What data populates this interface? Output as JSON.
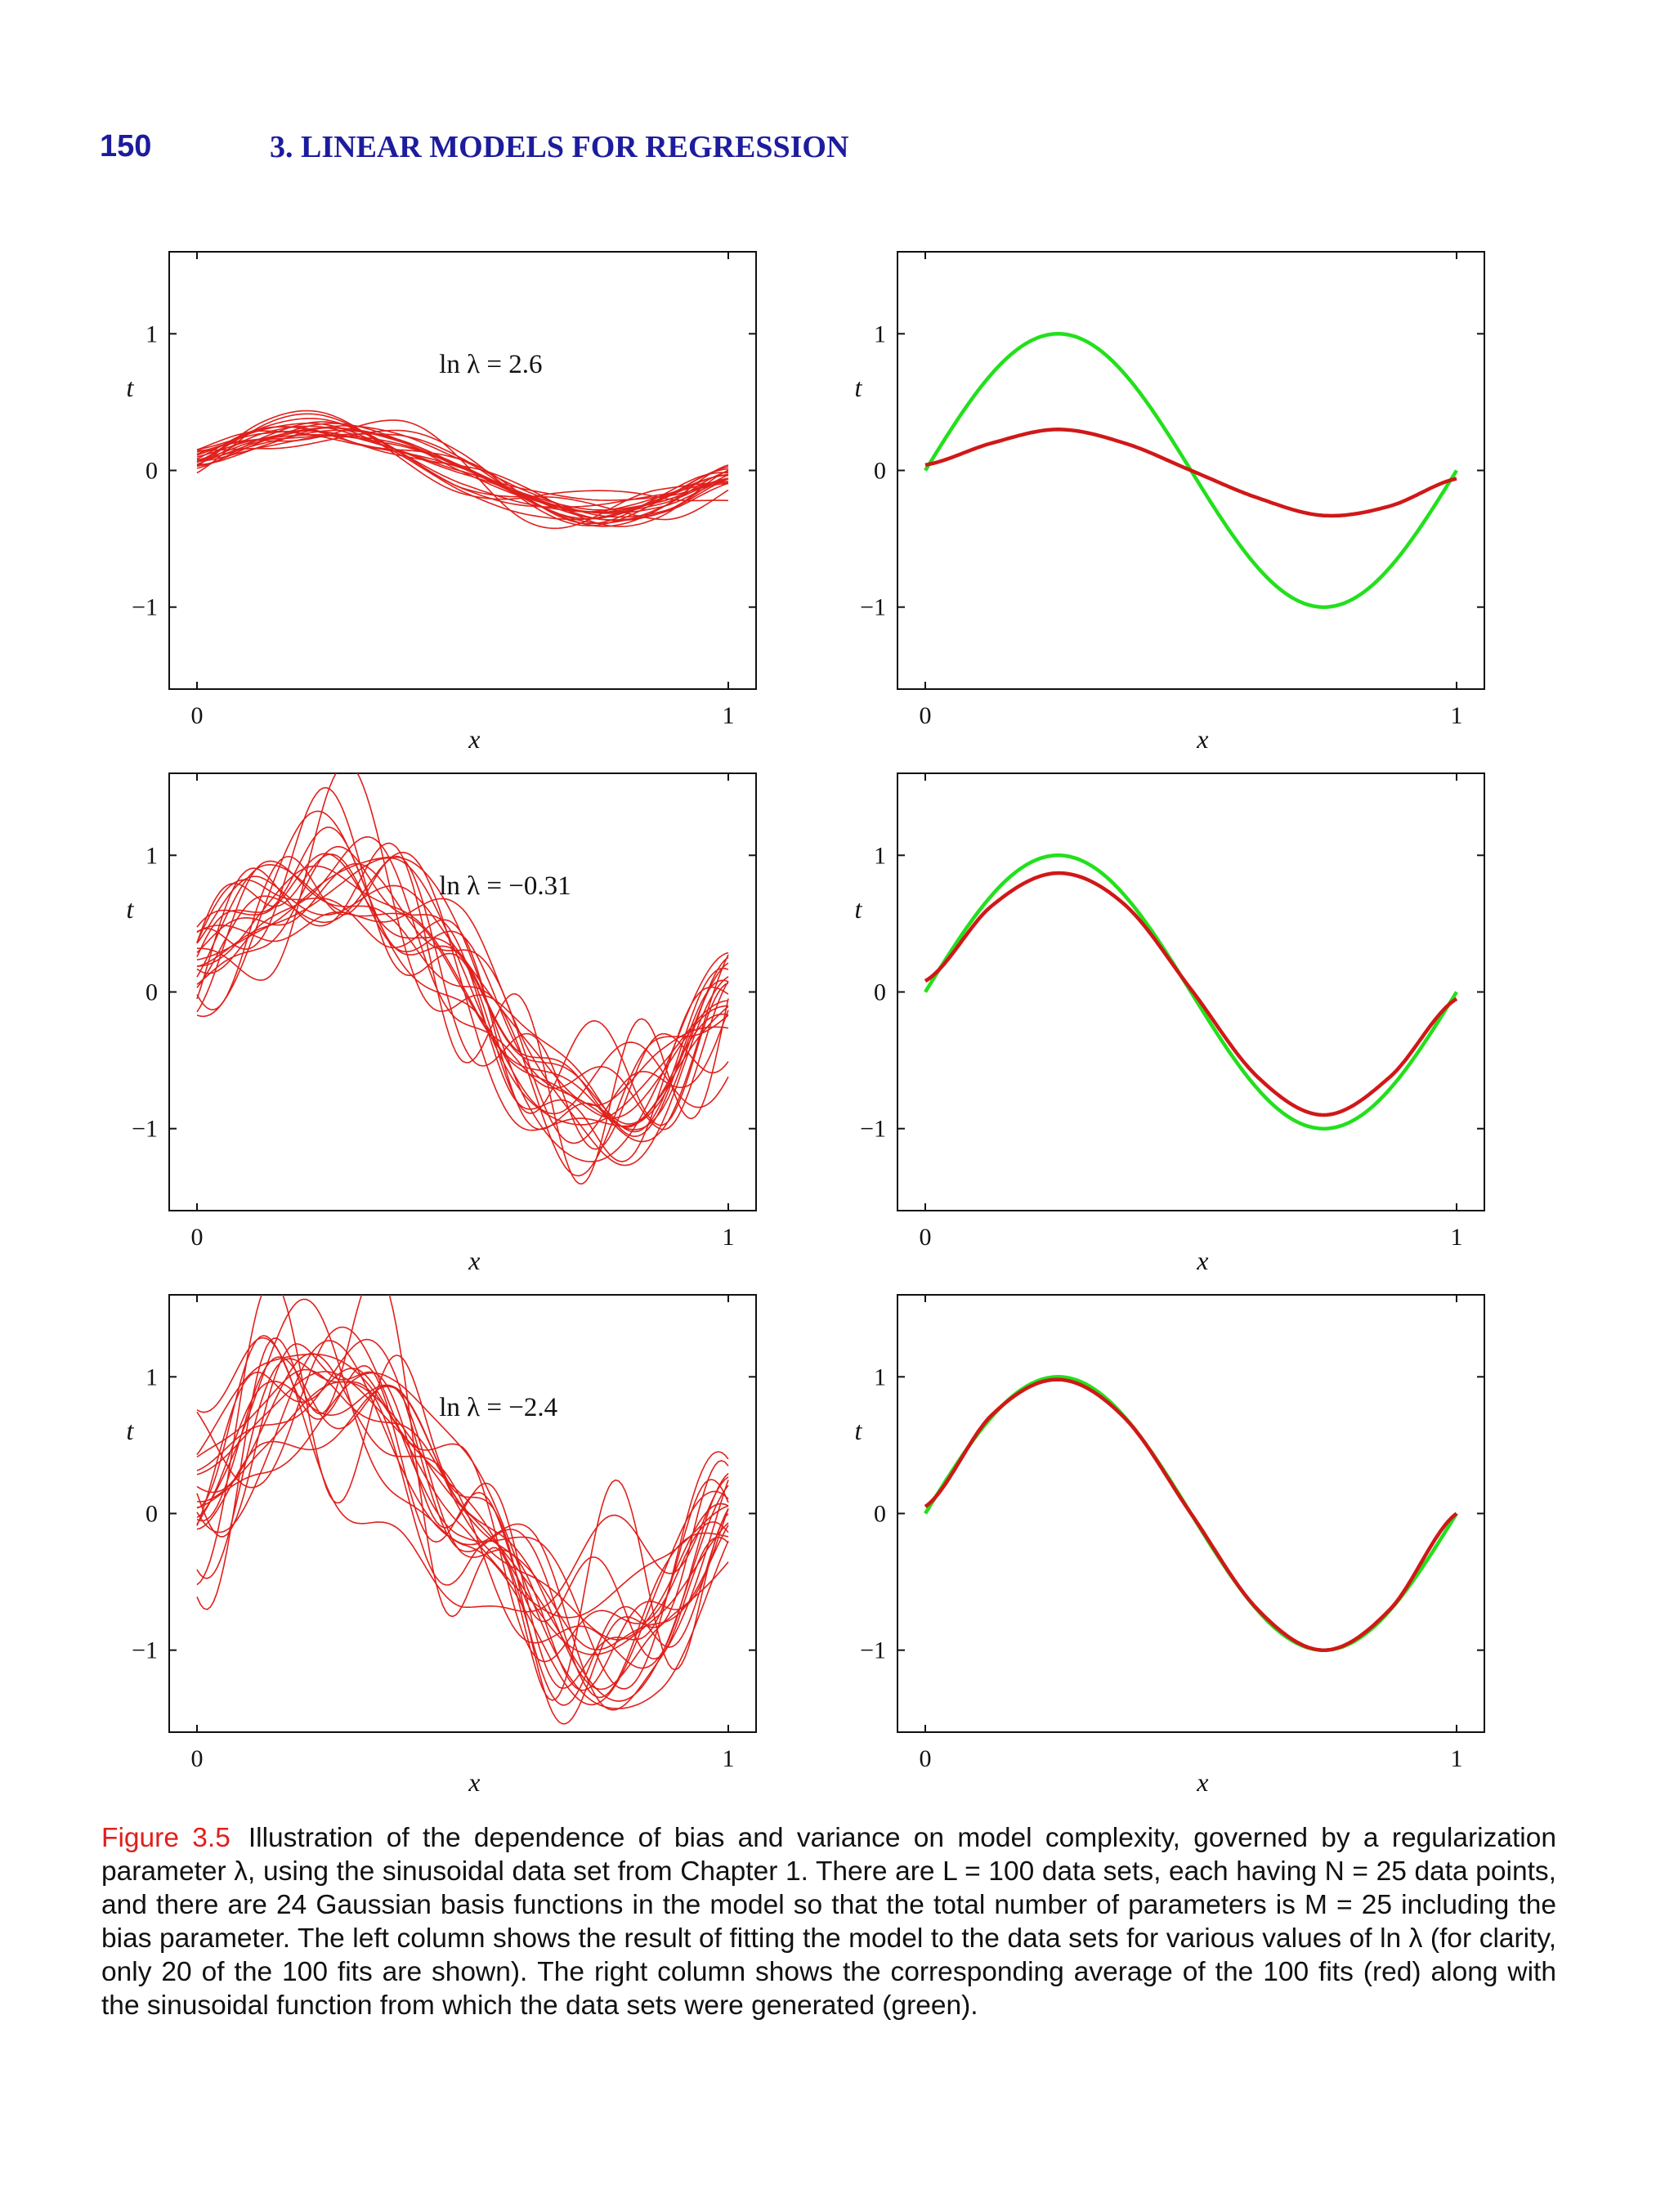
{
  "header": {
    "page_number": "150",
    "chapter_title": "3. LINEAR MODELS FOR REGRESSION"
  },
  "colors": {
    "header": "#1c1c9e",
    "fit_red": "#e0201c",
    "mean_red": "#d01818",
    "true_green": "#22e01c",
    "caption_label": "#e0201c"
  },
  "chart_data": [
    {
      "type": "line",
      "panel": "left-row-1",
      "annotation": "ln λ = 2.6",
      "xlabel": "x",
      "ylabel": "t",
      "xlim": [
        0,
        1
      ],
      "ylim": [
        -1.6,
        1.6
      ],
      "xticks": [
        "0",
        "1"
      ],
      "yticks": [
        "1",
        "0",
        "−1"
      ],
      "series_count_shown": 20,
      "series_mean": {
        "x": [
          0,
          0.125,
          0.25,
          0.375,
          0.5,
          0.625,
          0.75,
          0.875,
          1
        ],
        "y": [
          0.06,
          0.22,
          0.31,
          0.22,
          0.0,
          -0.22,
          -0.33,
          -0.25,
          -0.05
        ]
      }
    },
    {
      "type": "line",
      "panel": "right-row-1",
      "xlabel": "x",
      "ylabel": "t",
      "xlim": [
        0,
        1
      ],
      "ylim": [
        -1.6,
        1.6
      ],
      "xticks": [
        "0",
        "1"
      ],
      "yticks": [
        "1",
        "0",
        "−1"
      ],
      "series": [
        {
          "color": "red",
          "x": [
            0,
            0.125,
            0.25,
            0.375,
            0.5,
            0.625,
            0.75,
            0.875,
            1
          ],
          "y": [
            0.04,
            0.2,
            0.3,
            0.2,
            0.0,
            -0.2,
            -0.33,
            -0.26,
            -0.06
          ]
        },
        {
          "color": "green",
          "x": [
            0,
            0.125,
            0.25,
            0.375,
            0.5,
            0.625,
            0.75,
            0.875,
            1
          ],
          "y": [
            0.0,
            0.707,
            1.0,
            0.707,
            0.0,
            -0.707,
            -1.0,
            -0.707,
            0.0
          ]
        }
      ]
    },
    {
      "type": "line",
      "panel": "left-row-2",
      "annotation": "ln λ = −0.31",
      "xlabel": "x",
      "ylabel": "t",
      "xlim": [
        0,
        1
      ],
      "ylim": [
        -1.6,
        1.6
      ],
      "xticks": [
        "0",
        "1"
      ],
      "yticks": [
        "1",
        "0",
        "−1"
      ],
      "series_count_shown": 20,
      "series_mean": {
        "x": [
          0,
          0.125,
          0.25,
          0.375,
          0.5,
          0.625,
          0.75,
          0.875,
          1
        ],
        "y": [
          0.18,
          0.62,
          0.86,
          0.62,
          0.02,
          -0.62,
          -0.88,
          -0.62,
          -0.08
        ]
      }
    },
    {
      "type": "line",
      "panel": "right-row-2",
      "xlabel": "x",
      "ylabel": "t",
      "xlim": [
        0,
        1
      ],
      "ylim": [
        -1.6,
        1.6
      ],
      "xticks": [
        "0",
        "1"
      ],
      "yticks": [
        "1",
        "0",
        "−1"
      ],
      "series": [
        {
          "color": "red",
          "x": [
            0,
            0.125,
            0.25,
            0.375,
            0.5,
            0.625,
            0.75,
            0.875,
            1
          ],
          "y": [
            0.08,
            0.63,
            0.87,
            0.64,
            0.02,
            -0.62,
            -0.9,
            -0.62,
            -0.05
          ]
        },
        {
          "color": "green",
          "x": [
            0,
            0.125,
            0.25,
            0.375,
            0.5,
            0.625,
            0.75,
            0.875,
            1
          ],
          "y": [
            0.0,
            0.707,
            1.0,
            0.707,
            0.0,
            -0.707,
            -1.0,
            -0.707,
            0.0
          ]
        }
      ]
    },
    {
      "type": "line",
      "panel": "left-row-3",
      "annotation": "ln λ = −2.4",
      "xlabel": "x",
      "ylabel": "t",
      "xlim": [
        0,
        1
      ],
      "ylim": [
        -1.6,
        1.6
      ],
      "xticks": [
        "0",
        "1"
      ],
      "yticks": [
        "1",
        "0",
        "−1"
      ],
      "series_count_shown": 20,
      "series_mean": {
        "x": [
          0,
          0.125,
          0.25,
          0.375,
          0.5,
          0.625,
          0.75,
          0.875,
          1
        ],
        "y": [
          0.2,
          0.72,
          0.97,
          0.7,
          0.0,
          -0.72,
          -1.0,
          -0.72,
          -0.02
        ]
      }
    },
    {
      "type": "line",
      "panel": "right-row-3",
      "xlabel": "x",
      "ylabel": "t",
      "xlim": [
        0,
        1
      ],
      "ylim": [
        -1.6,
        1.6
      ],
      "xticks": [
        "0",
        "1"
      ],
      "yticks": [
        "1",
        "0",
        "−1"
      ],
      "series": [
        {
          "color": "red",
          "x": [
            0,
            0.125,
            0.25,
            0.375,
            0.5,
            0.625,
            0.75,
            0.875,
            1
          ],
          "y": [
            0.05,
            0.72,
            0.98,
            0.7,
            0.0,
            -0.7,
            -1.0,
            -0.7,
            0.0
          ]
        },
        {
          "color": "green",
          "x": [
            0,
            0.125,
            0.25,
            0.375,
            0.5,
            0.625,
            0.75,
            0.875,
            1
          ],
          "y": [
            0.0,
            0.707,
            1.0,
            0.707,
            0.0,
            -0.707,
            -1.0,
            -0.707,
            0.0
          ]
        }
      ]
    }
  ],
  "caption": {
    "label": "Figure 3.5",
    "text": "Illustration of the dependence of bias and variance on model complexity, governed by a regularization parameter λ, using the sinusoidal data set from Chapter 1. There are L = 100 data sets, each having N = 25 data points, and there are 24 Gaussian basis functions in the model so that the total number of parameters is M = 25 including the bias parameter. The left column shows the result of fitting the model to the data sets for various values of ln λ (for clarity, only 20 of the 100 fits are shown). The right column shows the corresponding average of the 100 fits (red) along with the sinusoidal function from which the data sets were generated (green)."
  }
}
